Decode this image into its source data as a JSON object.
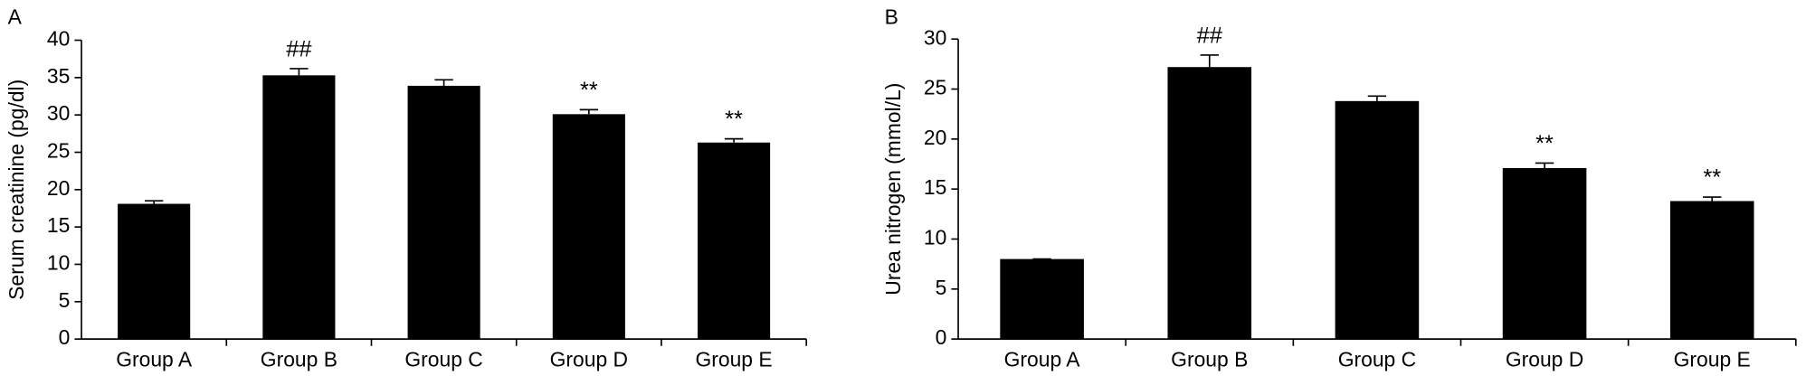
{
  "chart_data": [
    {
      "type": "bar",
      "panel_label": "A",
      "y_label": "Serum creatinine (pg/dl)",
      "categories": [
        "Group A",
        "Group B",
        "Group C",
        "Group D",
        "Group E"
      ],
      "values": [
        18.1,
        35.3,
        33.9,
        30.1,
        26.3
      ],
      "errors": [
        0.4,
        0.9,
        0.8,
        0.6,
        0.5
      ],
      "markers": [
        null,
        "##",
        null,
        "**",
        "**"
      ],
      "color": "#000000",
      "ylim": [
        0,
        40
      ],
      "yticks": [
        0,
        5,
        10,
        15,
        20,
        25,
        30,
        35,
        40
      ]
    },
    {
      "type": "bar",
      "panel_label": "B",
      "y_label": "Urea nitrogen (mmol/L)",
      "categories": [
        "Group A",
        "Group B",
        "Group C",
        "Group D",
        "Group E"
      ],
      "values": [
        8.0,
        27.2,
        23.8,
        17.1,
        13.8
      ],
      "errors": [
        0.0,
        1.2,
        0.5,
        0.5,
        0.4
      ],
      "markers": [
        null,
        "##",
        null,
        "**",
        "**"
      ],
      "color": "#000000",
      "ylim": [
        0,
        30
      ],
      "yticks": [
        0,
        5,
        10,
        15,
        20,
        25,
        30
      ]
    }
  ]
}
